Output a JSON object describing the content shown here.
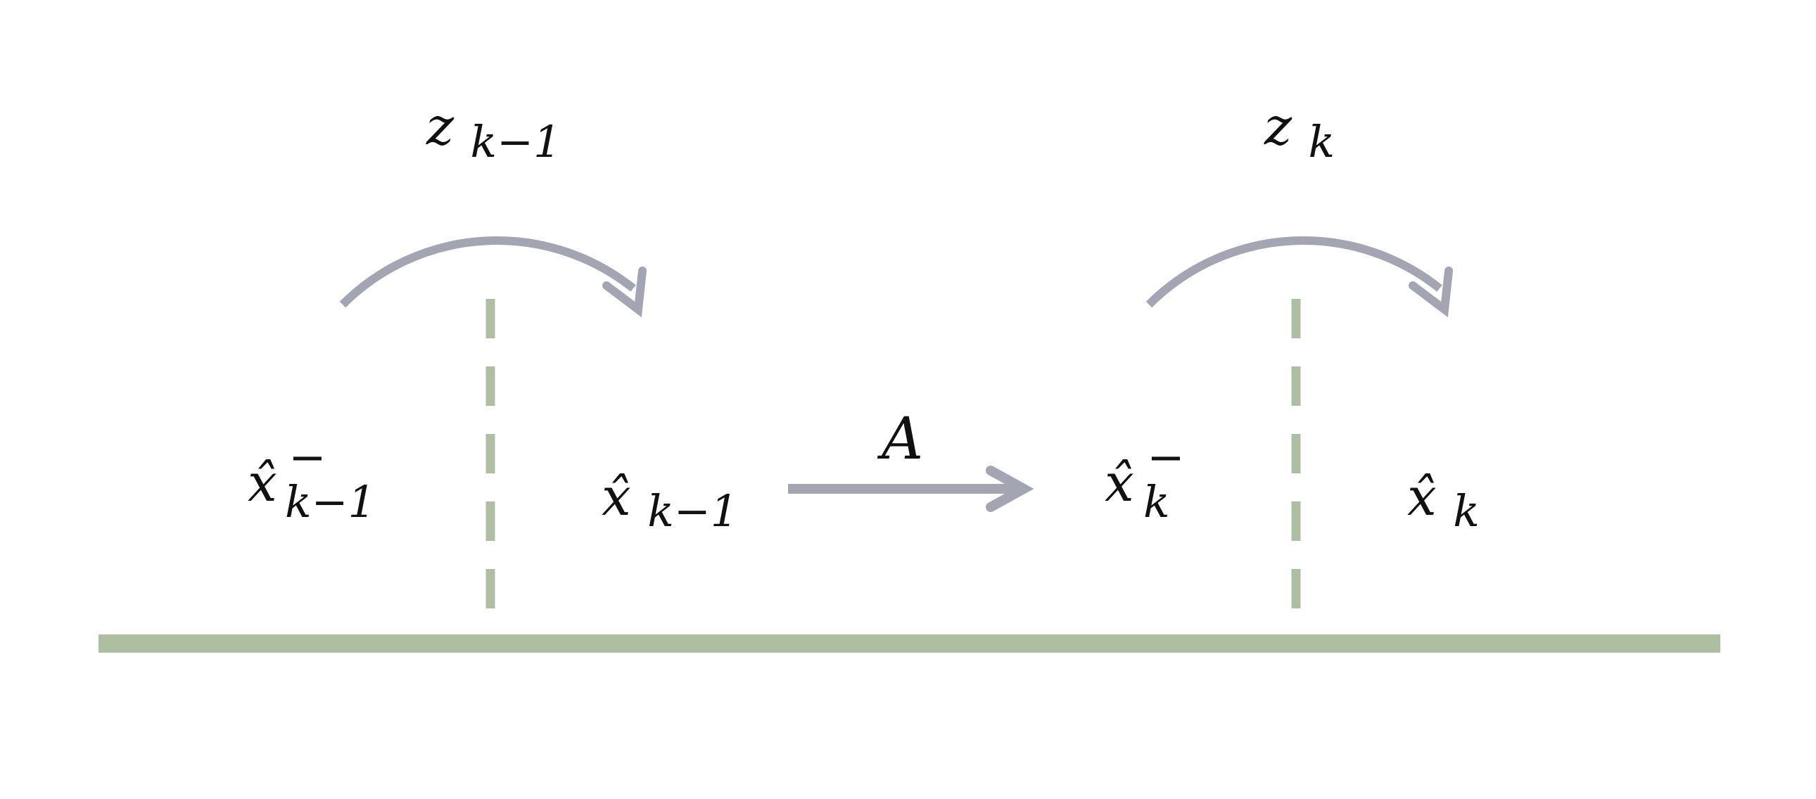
{
  "colors": {
    "timeline": "#adbea1",
    "arrow": "#a3a5b2",
    "text": "#111111",
    "background": "#ffffff"
  },
  "labels": {
    "z_prev": {
      "base": "z",
      "sub": "k−1",
      "sup": ""
    },
    "z_curr": {
      "base": "z",
      "sub": "k",
      "sup": ""
    },
    "x_prior_prev": {
      "base": "x̂",
      "sub": "k−1",
      "sup": "−"
    },
    "x_post_prev": {
      "base": "x̂",
      "sub": "k−1",
      "sup": ""
    },
    "transition": {
      "base": "A",
      "sub": "",
      "sup": ""
    },
    "x_prior_curr": {
      "base": "x̂",
      "sub": "k",
      "sup": "−"
    },
    "x_post_curr": {
      "base": "x̂",
      "sub": "k",
      "sup": ""
    }
  },
  "icons": {
    "update_arrow": "curved-arrow-icon",
    "predict_arrow": "right-arrow-icon"
  }
}
